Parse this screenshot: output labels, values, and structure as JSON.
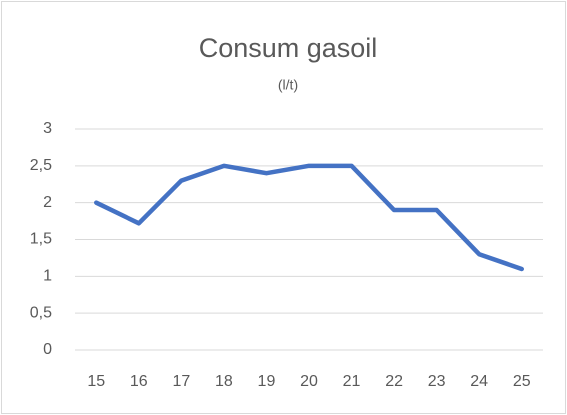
{
  "chart_data": {
    "type": "line",
    "title": "Consum gasoil",
    "subtitle": "(l/t)",
    "categories": [
      "15",
      "16",
      "17",
      "18",
      "19",
      "20",
      "21",
      "22",
      "23",
      "24",
      "25"
    ],
    "series": [
      {
        "name": "Consum gasoil",
        "color": "#4472c4",
        "values": [
          2.0,
          1.72,
          2.3,
          2.5,
          2.4,
          2.5,
          2.5,
          1.9,
          1.9,
          1.3,
          1.1
        ]
      }
    ],
    "ylim": [
      0,
      3
    ],
    "yticks": [
      0,
      {
        "value": 0.5,
        "label": "0,5"
      },
      1,
      {
        "value": 1.5,
        "label": "1,5"
      },
      2,
      {
        "value": 2.5,
        "label": "2,5"
      },
      3
    ],
    "grid": true
  }
}
